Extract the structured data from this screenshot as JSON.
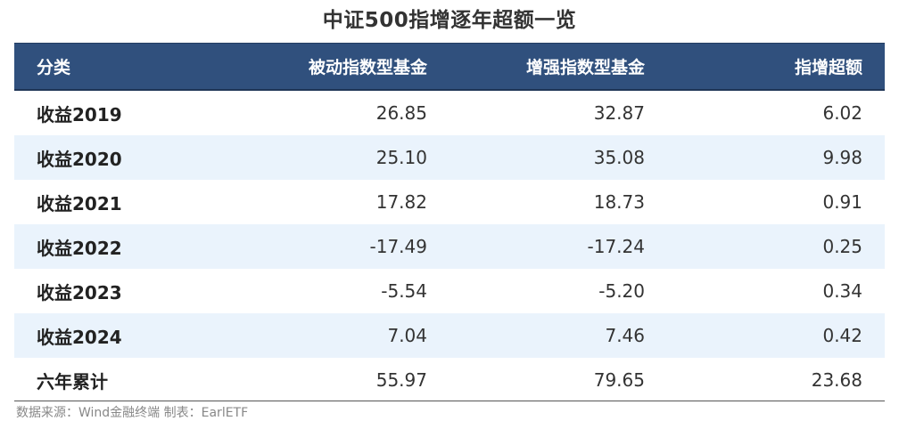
{
  "title": "中证500指增逐年超额一览",
  "table": {
    "headers": [
      "分类",
      "被动指数型基金",
      "增强指数型基金",
      "指增超额"
    ],
    "rows": [
      {
        "label": "收益2019",
        "passive": "26.85",
        "enhanced": "32.87",
        "excess": "6.02"
      },
      {
        "label": "收益2020",
        "passive": "25.10",
        "enhanced": "35.08",
        "excess": "9.98"
      },
      {
        "label": "收益2021",
        "passive": "17.82",
        "enhanced": "18.73",
        "excess": "0.91"
      },
      {
        "label": "收益2022",
        "passive": "-17.49",
        "enhanced": "-17.24",
        "excess": "0.25"
      },
      {
        "label": "收益2023",
        "passive": "-5.54",
        "enhanced": "-5.20",
        "excess": "0.34"
      },
      {
        "label": "收益2024",
        "passive": "7.04",
        "enhanced": "7.46",
        "excess": "0.42"
      },
      {
        "label": "六年累计",
        "passive": "55.97",
        "enhanced": "79.65",
        "excess": "23.68"
      }
    ]
  },
  "source": "数据来源：Wind金融终端 制表：EarlETF",
  "colors": {
    "header_bg": "#30507d",
    "header_text": "#ffffff",
    "alt_row_bg": "#eaf3fc"
  }
}
